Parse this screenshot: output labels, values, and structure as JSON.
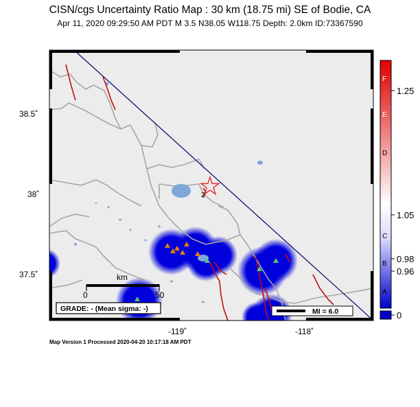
{
  "title": "CISN/cgs Uncertainty Ratio Map : 30 km (18.75 mi) SE of Bodie, CA",
  "subtitle": "Apr 11, 2020 09:29:50 AM PDT   M 3.5   N38.05 W118.75   Depth: 2.0km   ID:73367590",
  "footer": "Map Version 1 Processed 2020-04-20 10:17:18 AM PDT",
  "axes": {
    "lat_ticks": [
      "38.5˚",
      "38˚",
      "37.5˚"
    ],
    "lon_ticks": [
      "-119˚",
      "-118˚"
    ]
  },
  "scale_bar": {
    "unit": "km",
    "left": "0",
    "right": "50"
  },
  "grade_box": "GRADE: - (Mean sigma: -)",
  "mi_legend": "MI = 6.0",
  "colorbar": {
    "letters": [
      "F",
      "E",
      "D",
      "C",
      "B",
      "A"
    ],
    "values": [
      "1.25",
      "1.05",
      "0.98",
      "0.96",
      "0"
    ],
    "top_color": "#e00000",
    "mid_color": "#ffffff",
    "bottom_color": "#0000cc"
  },
  "epicenter": {
    "label": "2",
    "color": "#e03030"
  },
  "colors": {
    "land": "#ececec",
    "border": "#a6a6a6",
    "fault": "#c01010",
    "water": "#7fa6d8",
    "uncertainty": "#0000dd",
    "station_orange": "#e8800a",
    "station_green": "#50c87a",
    "diagonal": "#000066"
  }
}
